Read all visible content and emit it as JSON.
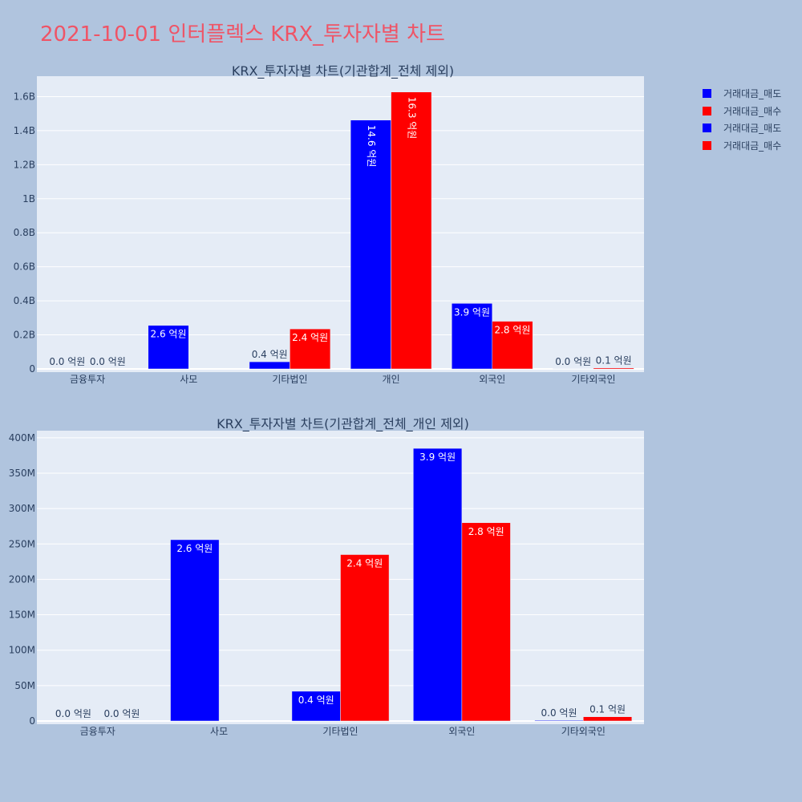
{
  "page_title": "2021-10-01 인터플렉스 KRX_투자자별 차트",
  "legend": [
    {
      "label": "거래대금_매도",
      "color": "#0000ff"
    },
    {
      "label": "거래대금_매수",
      "color": "#ff0000"
    },
    {
      "label": "거래대금_매도",
      "color": "#0000ff"
    },
    {
      "label": "거래대금_매수",
      "color": "#ff0000"
    }
  ],
  "chart_data": [
    {
      "type": "bar",
      "title": "KRX_투자자별 차트(기관합계_전체 제외)",
      "categories": [
        "금융투자",
        "사모",
        "기타법인",
        "개인",
        "외국인",
        "기타외국인"
      ],
      "series": [
        {
          "name": "거래대금_매도",
          "color": "#0000ff",
          "values": [
            0,
            256000000,
            42000000,
            1462000000,
            385000000,
            1000000
          ],
          "labels": [
            "0.0 억원",
            "2.6 억원",
            "0.4 억원",
            "14.6 억원",
            "3.9 억원",
            "0.0 억원"
          ]
        },
        {
          "name": "거래대금_매수",
          "color": "#ff0000",
          "values": [
            0,
            0,
            235000000,
            1627000000,
            280000000,
            6000000
          ],
          "labels": [
            "0.0 억원",
            "",
            "2.4 억원",
            "16.3 억원",
            "2.8 억원",
            "0.1 억원"
          ]
        }
      ],
      "ylim": [
        0,
        1720000000
      ],
      "yticks": [
        0,
        200000000,
        400000000,
        600000000,
        800000000,
        1000000000,
        1200000000,
        1400000000,
        1600000000
      ],
      "ytick_labels": [
        "0",
        "0.2B",
        "0.4B",
        "0.6B",
        "0.8B",
        "1B",
        "1.2B",
        "1.4B",
        "1.6B"
      ],
      "grid": true
    },
    {
      "type": "bar",
      "title": "KRX_투자자별 차트(기관합계_전체_개인 제외)",
      "categories": [
        "금융투자",
        "사모",
        "기타법인",
        "외국인",
        "기타외국인"
      ],
      "series": [
        {
          "name": "거래대금_매도",
          "color": "#0000ff",
          "values": [
            0,
            256000000,
            42000000,
            385000000,
            1000000
          ],
          "labels": [
            "0.0 억원",
            "2.6 억원",
            "0.4 억원",
            "3.9 억원",
            "0.0 억원"
          ]
        },
        {
          "name": "거래대금_매수",
          "color": "#ff0000",
          "values": [
            0,
            0,
            235000000,
            280000000,
            6000000
          ],
          "labels": [
            "0.0 억원",
            "",
            "2.4 억원",
            "2.8 억원",
            "0.1 억원"
          ]
        }
      ],
      "ylim": [
        0,
        410000000
      ],
      "yticks": [
        0,
        50000000,
        100000000,
        150000000,
        200000000,
        250000000,
        300000000,
        350000000,
        400000000
      ],
      "ytick_labels": [
        "0",
        "50M",
        "100M",
        "150M",
        "200M",
        "250M",
        "300M",
        "350M",
        "400M"
      ],
      "grid": true
    }
  ]
}
